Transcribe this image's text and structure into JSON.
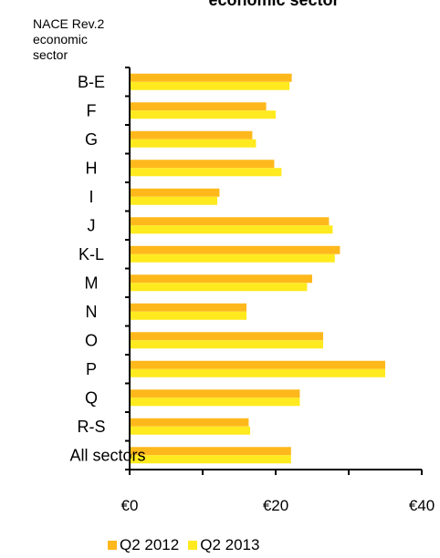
{
  "chart_data": {
    "type": "bar",
    "orientation": "horizontal",
    "title": "economic sector",
    "ylabel_lines": [
      "NACE Rev.2",
      "economic",
      "sector"
    ],
    "categories": [
      "B-E",
      "F",
      "G",
      "H",
      "I",
      "J",
      "K-L",
      "M",
      "N",
      "O",
      "P",
      "Q",
      "R-S",
      "All sectors"
    ],
    "series": [
      {
        "name": "Q2 2012",
        "color": "#FFB81C",
        "values": [
          22.2,
          18.7,
          16.8,
          19.8,
          12.3,
          27.3,
          28.8,
          25.0,
          16.0,
          26.5,
          35.0,
          23.3,
          16.3,
          22.1
        ]
      },
      {
        "name": "Q2 2013",
        "color": "#FFEA1F",
        "values": [
          21.9,
          20.0,
          17.3,
          20.8,
          12.0,
          27.8,
          28.1,
          24.3,
          16.0,
          26.5,
          35.0,
          23.3,
          16.5,
          22.1
        ]
      }
    ],
    "xticks": [
      "€0",
      "€20",
      "€40"
    ],
    "xlim": [
      0,
      40
    ],
    "grid": false,
    "legend_position": "bottom"
  }
}
